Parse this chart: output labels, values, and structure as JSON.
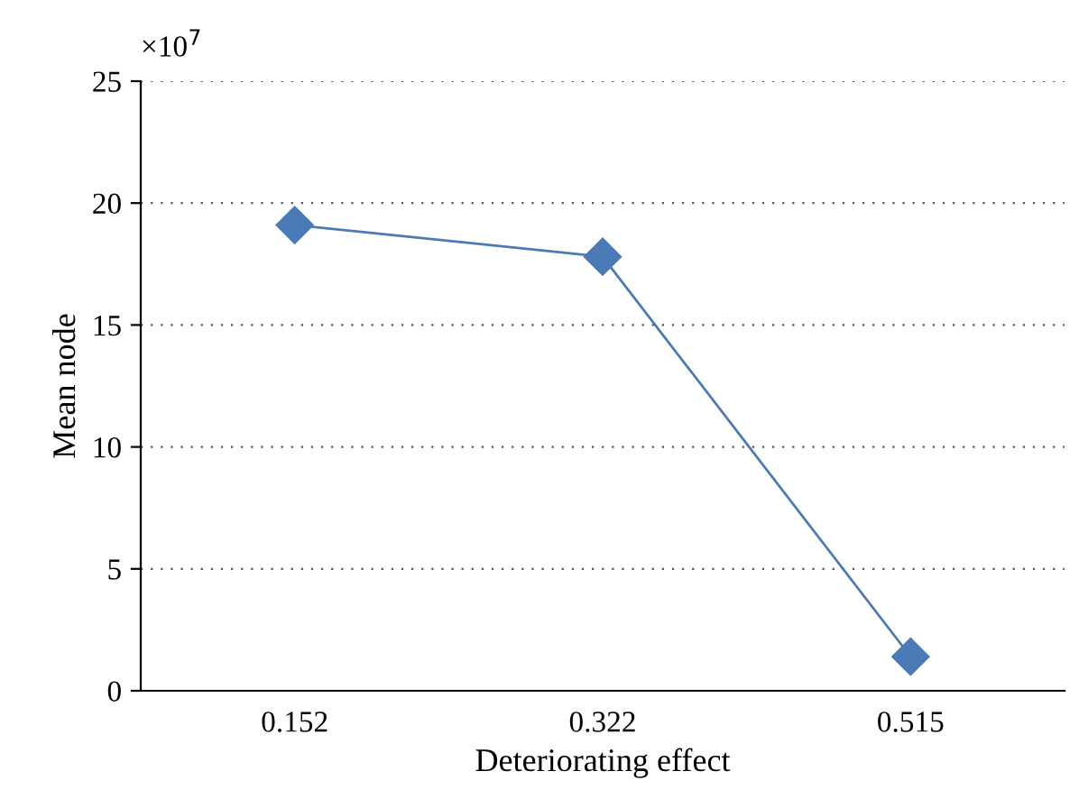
{
  "chart_data": {
    "type": "line",
    "xlabel": "Deteriorating effect",
    "ylabel": "Mean node",
    "categories": [
      "0.152",
      "0.322",
      "0.515"
    ],
    "series": [
      {
        "color": "#4a7bb7",
        "values": [
          19.1,
          17.8,
          1.4
        ]
      }
    ],
    "ylim": [
      0,
      25
    ],
    "yticks": [
      0,
      5,
      10,
      15,
      20,
      25
    ],
    "grid": "y",
    "marker": "diamond",
    "line_style": "solid",
    "legend": false,
    "annotations": [
      "×10$^{7}$"
    ]
  }
}
